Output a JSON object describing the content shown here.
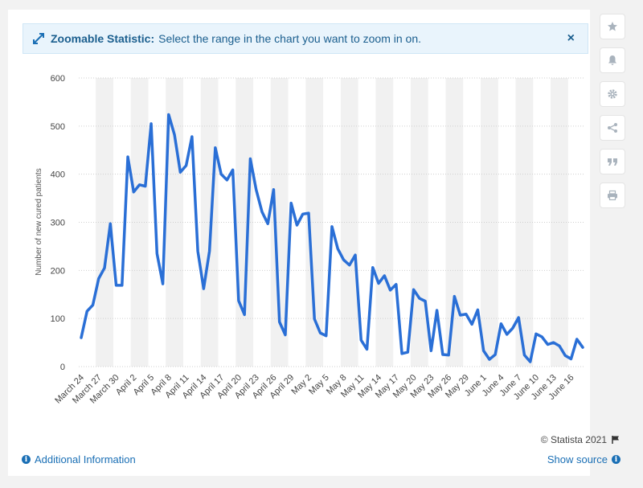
{
  "banner": {
    "title": "Zoomable Statistic:",
    "text": "Select the range in the chart you want to zoom in on.",
    "close": "×"
  },
  "sidebar": {
    "items": [
      {
        "icon": "star-icon"
      },
      {
        "icon": "bell-icon"
      },
      {
        "icon": "gear-icon"
      },
      {
        "icon": "share-icon"
      },
      {
        "icon": "quote-icon"
      },
      {
        "icon": "print-icon"
      }
    ]
  },
  "footer": {
    "copyright": "© Statista 2021",
    "additional_info": "Additional Information",
    "show_source": "Show source"
  },
  "colors": {
    "line": "#2a6fd6",
    "band": "#f1f1f1",
    "grid": "#cfcfcf",
    "accent": "#1a6fb5"
  },
  "chart_data": {
    "type": "line",
    "ylabel": "Number of new cured patients",
    "ylim": [
      0,
      600
    ],
    "yticks": [
      0,
      100,
      200,
      300,
      400,
      500,
      600
    ],
    "x_tick_labels": [
      "March 24",
      "March 27",
      "March 30",
      "April 2",
      "April 5",
      "April 8",
      "April 11",
      "April 14",
      "April 17",
      "April 20",
      "April 23",
      "April 26",
      "April 29",
      "May 2",
      "May 5",
      "May 8",
      "May 11",
      "May 14",
      "May 17",
      "May 20",
      "May 23",
      "May 26",
      "May 29",
      "June 1",
      "June 4",
      "June 7",
      "June 10",
      "June 13",
      "June 16"
    ],
    "series": [
      {
        "values": [
          60,
          115,
          128,
          183,
          205,
          297,
          169,
          169,
          436,
          363,
          378,
          375,
          505,
          235,
          172,
          524,
          482,
          404,
          418,
          478,
          240,
          162,
          240,
          455,
          400,
          388,
          409,
          137,
          108,
          432,
          368,
          322,
          297,
          368,
          93,
          66,
          340,
          294,
          317,
          319,
          99,
          70,
          64,
          291,
          245,
          222,
          211,
          232,
          55,
          36,
          206,
          173,
          189,
          159,
          171,
          27,
          30,
          160,
          142,
          136,
          33,
          117,
          25,
          24,
          146,
          107,
          109,
          88,
          118,
          33,
          15,
          25,
          89,
          67,
          80,
          102,
          24,
          10,
          68,
          62,
          46,
          50,
          43,
          23,
          16,
          57,
          40
        ]
      }
    ]
  }
}
